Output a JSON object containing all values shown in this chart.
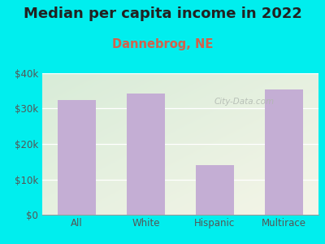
{
  "title": "Median per capita income in 2022",
  "subtitle": "Dannebrog, NE",
  "categories": [
    "All",
    "White",
    "Hispanic",
    "Multirace"
  ],
  "values": [
    32500,
    34200,
    14000,
    35500
  ],
  "bar_color": "#c4aed4",
  "title_fontsize": 13,
  "subtitle_fontsize": 10.5,
  "subtitle_color": "#d4614a",
  "title_color": "#222222",
  "background_color": "#00eeee",
  "plot_bg_color_topleft": "#d8ecd8",
  "plot_bg_color_bottomright": "#f5f5e8",
  "ylim": [
    0,
    40000
  ],
  "yticks": [
    0,
    10000,
    20000,
    30000,
    40000
  ],
  "ytick_labels": [
    "$0",
    "$10k",
    "$20k",
    "$30k",
    "$40k"
  ],
  "watermark": "City-Data.com",
  "grid_color": "#ffffff",
  "tick_color": "#555555"
}
